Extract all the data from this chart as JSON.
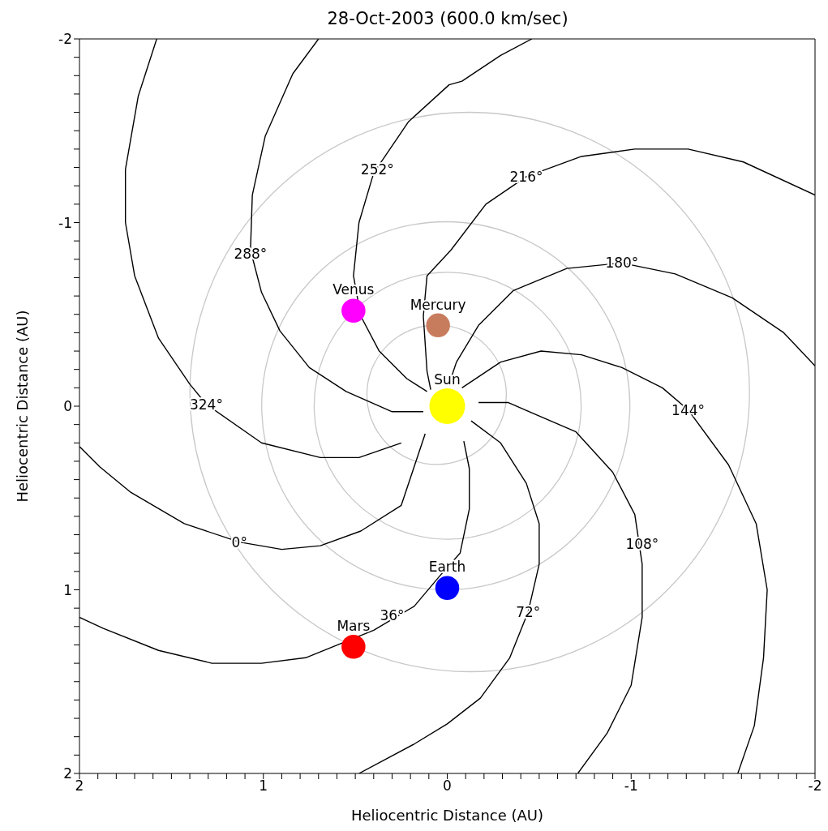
{
  "chart_data": {
    "type": "line",
    "title": "28-Oct-2003 (600.0 km/sec)",
    "xlabel": "Heliocentric Distance (AU)",
    "ylabel": "Heliocentric Distance (AU)",
    "xlim": [
      2,
      -2
    ],
    "ylim": [
      2,
      -2
    ],
    "xticks": [
      2,
      {
        "value": 1.9,
        "label": null
      },
      {
        "value": 1.8,
        "label": null
      },
      {
        "value": 1.7,
        "label": null
      },
      {
        "value": 1.6,
        "label": null
      },
      {
        "value": 1.5,
        "label": null
      },
      {
        "value": 1.4,
        "label": null
      },
      {
        "value": 1.3,
        "label": null
      },
      {
        "value": 1.2,
        "label": null
      },
      {
        "value": 1.1,
        "label": null
      },
      1,
      {
        "value": 0.9,
        "label": null
      },
      {
        "value": 0.8,
        "label": null
      },
      {
        "value": 0.7,
        "label": null
      },
      {
        "value": 0.6,
        "label": null
      },
      {
        "value": 0.5,
        "label": null
      },
      {
        "value": 0.4,
        "label": null
      },
      {
        "value": 0.3,
        "label": null
      },
      {
        "value": 0.2,
        "label": null
      },
      {
        "value": 0.1,
        "label": null
      },
      0,
      {
        "value": -0.1,
        "label": null
      },
      {
        "value": -0.2,
        "label": null
      },
      {
        "value": -0.3,
        "label": null
      },
      {
        "value": -0.4,
        "label": null
      },
      {
        "value": -0.5,
        "label": null
      },
      {
        "value": -0.6,
        "label": null
      },
      {
        "value": -0.7,
        "label": null
      },
      {
        "value": -0.8,
        "label": null
      },
      {
        "value": -0.9,
        "label": null
      },
      -1,
      {
        "value": -1.1,
        "label": null
      },
      {
        "value": -1.2,
        "label": null
      },
      {
        "value": -1.3,
        "label": null
      },
      {
        "value": -1.4,
        "label": null
      },
      {
        "value": -1.5,
        "label": null
      },
      {
        "value": -1.6,
        "label": null
      },
      {
        "value": -1.7,
        "label": null
      },
      {
        "value": -1.8,
        "label": null
      },
      {
        "value": -1.9,
        "label": null
      },
      -2
    ],
    "yticks": [
      2,
      {
        "value": 1.9,
        "label": null
      },
      {
        "value": 1.8,
        "label": null
      },
      {
        "value": 1.7,
        "label": null
      },
      {
        "value": 1.6,
        "label": null
      },
      {
        "value": 1.5,
        "label": null
      },
      {
        "value": 1.4,
        "label": null
      },
      {
        "value": 1.3,
        "label": null
      },
      {
        "value": 1.2,
        "label": null
      },
      {
        "value": 1.1,
        "label": null
      },
      1,
      {
        "value": 0.9,
        "label": null
      },
      {
        "value": 0.8,
        "label": null
      },
      {
        "value": 0.7,
        "label": null
      },
      {
        "value": 0.6,
        "label": null
      },
      {
        "value": 0.5,
        "label": null
      },
      {
        "value": 0.4,
        "label": null
      },
      {
        "value": 0.3,
        "label": null
      },
      {
        "value": 0.2,
        "label": null
      },
      {
        "value": 0.1,
        "label": null
      },
      0,
      {
        "value": -0.1,
        "label": null
      },
      {
        "value": -0.2,
        "label": null
      },
      {
        "value": -0.3,
        "label": null
      },
      {
        "value": -0.4,
        "label": null
      },
      {
        "value": -0.5,
        "label": null
      },
      {
        "value": -0.6,
        "label": null
      },
      {
        "value": -0.7,
        "label": null
      },
      {
        "value": -0.8,
        "label": null
      },
      {
        "value": -0.9,
        "label": null
      },
      -1,
      {
        "value": -1.1,
        "label": null
      },
      {
        "value": -1.2,
        "label": null
      },
      {
        "value": -1.3,
        "label": null
      },
      {
        "value": -1.4,
        "label": null
      },
      {
        "value": -1.5,
        "label": null
      },
      {
        "value": -1.6,
        "label": null
      },
      {
        "value": -1.7,
        "label": null
      },
      {
        "value": -1.8,
        "label": null
      },
      {
        "value": -1.9,
        "label": null
      },
      -2
    ],
    "series": [
      {
        "color": "#000000",
        "x": [
          0.25,
          0.48,
          0.69,
          1.01,
          1.31,
          1.4,
          1.57,
          1.7,
          1.75,
          1.75,
          1.68,
          1.58
        ],
        "values": [
          0.2,
          0.28,
          0.28,
          0.2,
          -0.01,
          -0.12,
          -0.37,
          -0.71,
          -1,
          -1.29,
          -1.69,
          -2
        ]
      },
      {
        "color": "#000000",
        "x": [
          0.13,
          0.3,
          0.55,
          0.75,
          0.91,
          1.01,
          1.07,
          1.06,
          0.99,
          0.84,
          0.7
        ],
        "values": [
          0.03,
          0.03,
          -0.08,
          -0.21,
          -0.41,
          -0.62,
          -0.85,
          -1.15,
          -1.47,
          -1.81,
          -2
        ]
      },
      {
        "color": "#000000",
        "x": [
          0.11,
          0.22,
          0.37,
          0.47,
          0.51,
          0.48,
          0.4,
          0.21,
          -0.01,
          -0.08,
          -0.29,
          -0.46
        ],
        "values": [
          -0.08,
          -0.15,
          -0.3,
          -0.49,
          -0.71,
          -1,
          -1.27,
          -1.55,
          -1.75,
          -1.77,
          -1.91,
          -2
        ]
      },
      {
        "color": "#000000",
        "x": [
          0.09,
          0.11,
          0.13,
          0.11,
          -0.02,
          -0.21,
          -0.43,
          -0.73,
          -1.02,
          -1.31,
          -1.61,
          -2
        ],
        "values": [
          -0.09,
          -0.19,
          -0.49,
          -0.71,
          -0.85,
          -1.1,
          -1.25,
          -1.36,
          -1.4,
          -1.4,
          -1.33,
          -1.15
        ]
      },
      {
        "color": "#000000",
        "x": [
          -0.01,
          -0.05,
          -0.17,
          -0.36,
          -0.65,
          -0.95,
          -1.24,
          -1.55,
          -1.83,
          -2
        ],
        "values": [
          -0.12,
          -0.24,
          -0.44,
          -0.63,
          -0.75,
          -0.78,
          -0.72,
          -0.59,
          -0.4,
          -0.22
        ]
      },
      {
        "color": "#000000",
        "x": [
          -0.08,
          -0.29,
          -0.51,
          -0.73,
          -0.95,
          -1.17,
          -1.31,
          -1.53,
          -1.68,
          -1.74,
          -1.72,
          -1.67,
          -1.58
        ],
        "values": [
          -0.1,
          -0.24,
          -0.3,
          -0.28,
          -0.21,
          -0.1,
          0.02,
          0.32,
          0.64,
          1,
          1.37,
          1.74,
          2
        ]
      },
      {
        "color": "#000000",
        "x": [
          -0.17,
          -0.33,
          -0.7,
          -0.9,
          -1.02,
          -1.06,
          -1.06,
          -1,
          -0.87,
          -0.71
        ],
        "values": [
          -0.02,
          -0.02,
          0.14,
          0.36,
          0.59,
          0.86,
          1.15,
          1.52,
          1.78,
          2
        ]
      },
      {
        "color": "#000000",
        "x": [
          -0.13,
          -0.29,
          -0.43,
          -0.5,
          -0.5,
          -0.44,
          -0.34,
          -0.18,
          0,
          0.18,
          0.48
        ],
        "values": [
          0.08,
          0.2,
          0.42,
          0.64,
          0.86,
          1.12,
          1.37,
          1.59,
          1.73,
          1.84,
          2
        ]
      },
      {
        "color": "#000000",
        "x": [
          -0.09,
          -0.12,
          -0.12,
          -0.07,
          0.02,
          0.18,
          0.4,
          0.77,
          1.01,
          1.28,
          1.57,
          1.87,
          2
        ],
        "values": [
          0.19,
          0.34,
          0.56,
          0.8,
          0.9,
          1.09,
          1.22,
          1.37,
          1.4,
          1.4,
          1.33,
          1.21,
          1.15
        ]
      },
      {
        "color": "#000000",
        "x": [
          0.12,
          0.25,
          0.47,
          0.69,
          0.9,
          1.13,
          1.43,
          1.72,
          1.89,
          2
        ],
        "values": [
          0.15,
          0.54,
          0.68,
          0.76,
          0.78,
          0.74,
          0.64,
          0.47,
          0.33,
          0.22
        ]
      },
      {
        "type": "bubble",
        "name": "Sun",
        "color": "#ffff00",
        "x": [
          0
        ],
        "values": [
          0
        ],
        "sizes": [
          1
        ]
      },
      {
        "type": "bubble",
        "name": "Venus",
        "color": "#ff00ff",
        "x": [
          0.51
        ],
        "values": [
          -0.52
        ],
        "sizes": [
          0.45
        ]
      },
      {
        "type": "bubble",
        "name": "Mercury",
        "color": "#c87c5e",
        "x": [
          0.05
        ],
        "values": [
          -0.44
        ],
        "sizes": [
          0.45
        ]
      },
      {
        "type": "bubble",
        "name": "Earth",
        "color": "#0000ff",
        "x": [
          0
        ],
        "values": [
          0.99
        ],
        "sizes": [
          0.45
        ]
      },
      {
        "type": "bubble",
        "name": "Mars",
        "color": "#ff0000",
        "x": [
          0.51
        ],
        "values": [
          1.31
        ],
        "sizes": [
          0.45
        ]
      }
    ],
    "annotations": [
      {
        "text": "0°",
        "x": 1.13,
        "y": 0.74
      },
      {
        "text": "36°",
        "x": 0.3,
        "y": 1.14
      },
      {
        "text": "72°",
        "x": -0.44,
        "y": 1.12
      },
      {
        "text": "108°",
        "x": -1.06,
        "y": 0.75
      },
      {
        "text": "144°",
        "x": -1.31,
        "y": 0.02
      },
      {
        "text": "180°",
        "x": -0.95,
        "y": -0.78
      },
      {
        "text": "216°",
        "x": -0.43,
        "y": -1.25
      },
      {
        "text": "252°",
        "x": 0.38,
        "y": -1.29
      },
      {
        "text": "288°",
        "x": 1.07,
        "y": -0.83
      },
      {
        "text": "324°",
        "x": 1.31,
        "y": -0.01
      }
    ]
  }
}
